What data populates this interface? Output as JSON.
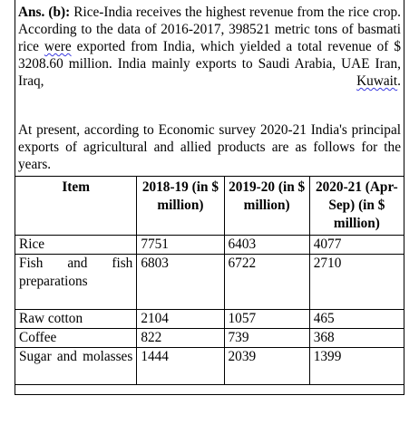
{
  "intro": {
    "answer_label": "Ans. (b):",
    "line1_rest": "Rice-India receives the highest revenue from the rice crop. According to the data of 2016-2017, 398521 metric tons of basmati rice",
    "were": "were",
    "line3_rest": "exported from India, which yielded a total revenue of $ 3208.60 million. India mainly exports to Saudi Arabia, UAE Iran, Iraq,",
    "kuwait": "Kuwait",
    "period": "."
  },
  "present": {
    "text": "At present, according to Economic survey 2020-21 India's principal exports of agricultural and allied products are as follows for the years."
  },
  "table": {
    "headers": [
      "Item",
      "2018-19 (in $ million)",
      "2019-20 (in $ million)",
      "2020-21 (Apr-Sep) (in $ million)"
    ],
    "rows": [
      {
        "item": "Rice",
        "v1": "7751",
        "v2": "6403",
        "v3": "4077"
      },
      {
        "item": "Fish and fish preparations",
        "v1": "6803",
        "v2": "6722",
        "v3": "2710"
      },
      {
        "item": "Raw cotton",
        "v1": "2104",
        "v2": "1057",
        "v3": "465"
      },
      {
        "item": "Coffee",
        "v1": "822",
        "v2": "739",
        "v3": "368"
      },
      {
        "item": "Sugar and molasses",
        "v1": "1444",
        "v2": "2039",
        "v3": "1399"
      }
    ]
  }
}
